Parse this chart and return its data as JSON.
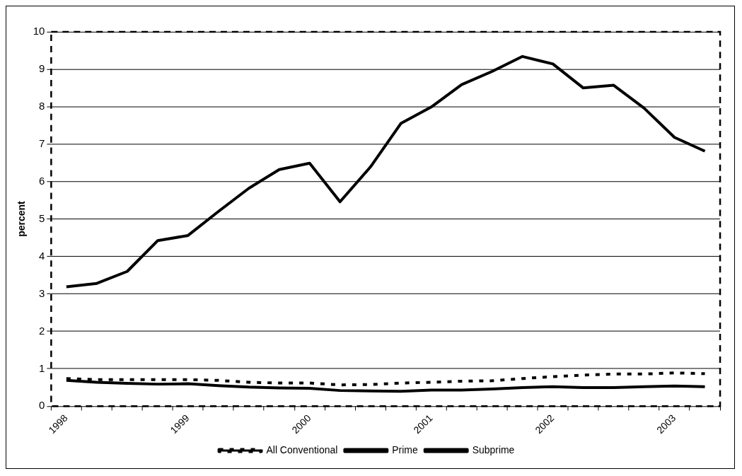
{
  "chart_data": {
    "type": "line",
    "ylabel": "percent",
    "categories": [
      "1998",
      null,
      null,
      null,
      "1999",
      null,
      null,
      null,
      "2000",
      null,
      null,
      null,
      "2001",
      null,
      null,
      null,
      "2002",
      null,
      null,
      null,
      "2003",
      null
    ],
    "series": [
      {
        "name": "All Conventional",
        "color": "#000000",
        "line_style": "dotted",
        "values": [
          0.74,
          0.71,
          0.71,
          0.71,
          0.71,
          0.69,
          0.64,
          0.62,
          0.62,
          0.57,
          0.58,
          0.62,
          0.64,
          0.67,
          0.68,
          0.74,
          0.79,
          0.83,
          0.86,
          0.86,
          0.89,
          0.87
        ]
      },
      {
        "name": "Prime",
        "color": "#000000",
        "line_style": "solid",
        "values": [
          0.69,
          0.64,
          0.61,
          0.59,
          0.6,
          0.55,
          0.51,
          0.49,
          0.48,
          0.42,
          0.41,
          0.4,
          0.43,
          0.43,
          0.46,
          0.5,
          0.52,
          0.5,
          0.5,
          0.52,
          0.54,
          0.52
        ]
      },
      {
        "name": "Subprime",
        "color": "#000000",
        "line_style": "solid",
        "values": [
          3.19,
          3.28,
          3.6,
          4.42,
          4.56,
          5.2,
          5.82,
          6.32,
          6.49,
          5.46,
          6.39,
          7.55,
          7.99,
          8.59,
          8.94,
          9.34,
          9.14,
          8.5,
          8.57,
          7.96,
          7.18,
          6.81
        ]
      }
    ],
    "ylim": [
      0,
      10
    ],
    "yticks": [
      0,
      1,
      2,
      3,
      4,
      5,
      6,
      7,
      8,
      9,
      10
    ],
    "grid": "y",
    "legend": "bottom",
    "marker": "none"
  }
}
